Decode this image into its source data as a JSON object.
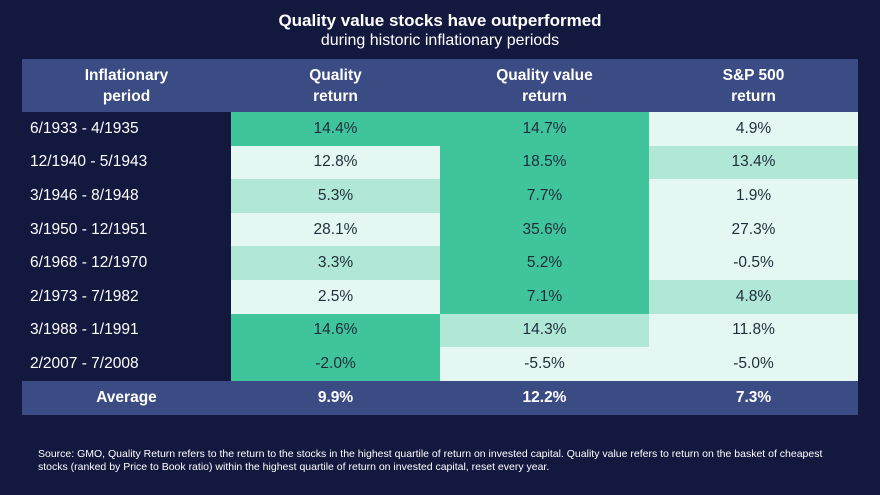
{
  "title": "Quality value stocks have outperformed",
  "subtitle": "during historic inflationary periods",
  "chart_data": {
    "type": "table",
    "columns": [
      "Inflationary period",
      "Quality return",
      "Quality value return",
      "S&P 500 return"
    ],
    "column_lines": [
      [
        "Inflationary",
        "period"
      ],
      [
        "Quality",
        "return"
      ],
      [
        "Quality value",
        "return"
      ],
      [
        "S&P 500",
        "return"
      ]
    ],
    "rows": [
      {
        "period": "6/1933 - 4/1935",
        "values": [
          "14.4%",
          "14.7%",
          "4.9%"
        ],
        "shade": [
          "dark",
          "dark",
          "light"
        ]
      },
      {
        "period": "12/1940 - 5/1943",
        "values": [
          "12.8%",
          "18.5%",
          "13.4%"
        ],
        "shade": [
          "light",
          "dark",
          "mid"
        ]
      },
      {
        "period": "3/1946 - 8/1948",
        "values": [
          "5.3%",
          "7.7%",
          "1.9%"
        ],
        "shade": [
          "mid",
          "dark",
          "light"
        ]
      },
      {
        "period": "3/1950 - 12/1951",
        "values": [
          "28.1%",
          "35.6%",
          "27.3%"
        ],
        "shade": [
          "light",
          "dark",
          "light"
        ]
      },
      {
        "period": "6/1968 - 12/1970",
        "values": [
          "3.3%",
          "5.2%",
          "-0.5%"
        ],
        "shade": [
          "mid",
          "dark",
          "light"
        ]
      },
      {
        "period": "2/1973 - 7/1982",
        "values": [
          "2.5%",
          "7.1%",
          "4.8%"
        ],
        "shade": [
          "light",
          "dark",
          "mid"
        ]
      },
      {
        "period": "3/1988 - 1/1991",
        "values": [
          "14.6%",
          "14.3%",
          "11.8%"
        ],
        "shade": [
          "dark",
          "mid",
          "light"
        ]
      },
      {
        "period": "2/2007 - 7/2008",
        "values": [
          "-2.0%",
          "-5.5%",
          "-5.0%"
        ],
        "shade": [
          "dark",
          "light",
          "light"
        ]
      }
    ],
    "average": {
      "label": "Average",
      "values": [
        "9.9%",
        "12.2%",
        "7.3%"
      ]
    }
  },
  "source": "Source: GMO, Quality Return refers to the return to the stocks in the highest quartile of return on invested capital. Quality value refers to return on the basket of cheapest stocks (ranked by Price to Book ratio) within the highest quartile of return on invested capital, reset every year.",
  "colors": {
    "background": "#13183f",
    "header": "#3b4b83",
    "dark": "#40c49c",
    "mid": "#b0e7d7",
    "light": "#e4f7f3"
  }
}
